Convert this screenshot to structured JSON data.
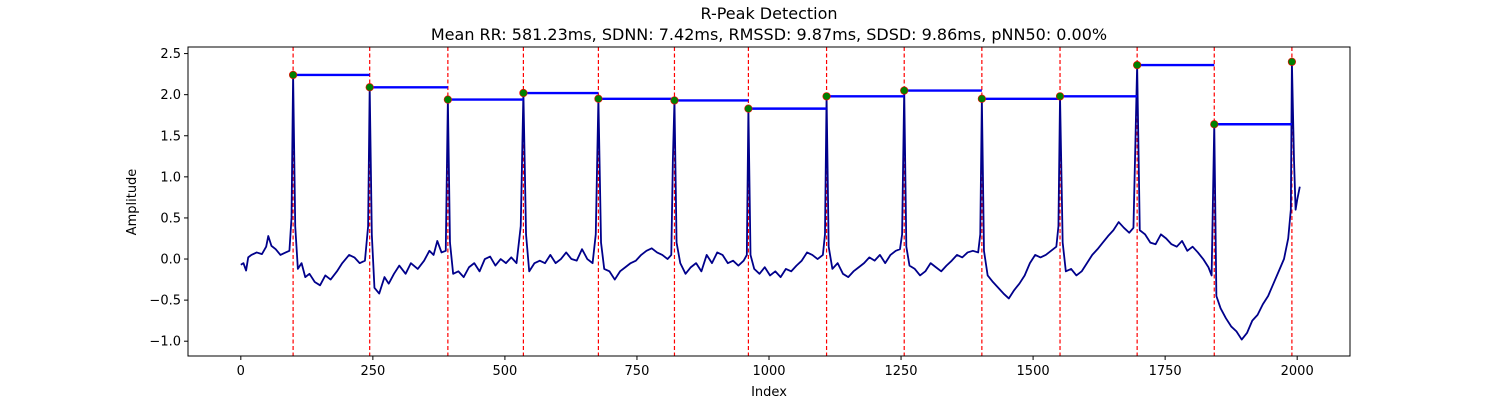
{
  "chart_data": {
    "type": "line",
    "title": "R-Peak Detection",
    "subtitle": "Mean RR: 581.23ms, SDNN: 7.42ms, RMSSD: 9.87ms, SDSD: 9.86ms, pNN50: 0.00%",
    "xlabel": "Index",
    "ylabel": "Amplitude",
    "xlim": [
      -100,
      2100
    ],
    "ylim": [
      -1.18,
      2.58
    ],
    "x_ticks": [
      0,
      250,
      500,
      750,
      1000,
      1250,
      1500,
      1750,
      2000
    ],
    "y_ticks": [
      -1.0,
      -0.5,
      0.0,
      0.5,
      1.0,
      1.5,
      2.0,
      2.5
    ],
    "grid": false,
    "colors": {
      "signal": "#00008b",
      "peak_lines": "#ff0000",
      "peak_markers": "#008000",
      "rr_segments": "#0000ff"
    },
    "signal": {
      "points": [
        [
          0,
          -0.07
        ],
        [
          5,
          -0.05
        ],
        [
          10,
          -0.14
        ],
        [
          14,
          0.02
        ],
        [
          20,
          0.05
        ],
        [
          30,
          0.08
        ],
        [
          40,
          0.06
        ],
        [
          48,
          0.15
        ],
        [
          52,
          0.28
        ],
        [
          58,
          0.16
        ],
        [
          66,
          0.12
        ],
        [
          75,
          0.05
        ],
        [
          85,
          0.08
        ],
        [
          92,
          0.1
        ],
        [
          96,
          0.5
        ],
        [
          99,
          2.24
        ],
        [
          103,
          0.4
        ],
        [
          108,
          -0.12
        ],
        [
          115,
          -0.05
        ],
        [
          122,
          -0.22
        ],
        [
          130,
          -0.18
        ],
        [
          140,
          -0.28
        ],
        [
          150,
          -0.32
        ],
        [
          160,
          -0.2
        ],
        [
          170,
          -0.25
        ],
        [
          182,
          -0.15
        ],
        [
          192,
          -0.05
        ],
        [
          205,
          0.05
        ],
        [
          215,
          0.02
        ],
        [
          225,
          -0.05
        ],
        [
          235,
          -0.02
        ],
        [
          241,
          0.4
        ],
        [
          244,
          2.09
        ],
        [
          248,
          0.3
        ],
        [
          253,
          -0.35
        ],
        [
          262,
          -0.42
        ],
        [
          272,
          -0.22
        ],
        [
          280,
          -0.3
        ],
        [
          290,
          -0.18
        ],
        [
          300,
          -0.08
        ],
        [
          312,
          -0.18
        ],
        [
          322,
          -0.05
        ],
        [
          335,
          -0.12
        ],
        [
          347,
          -0.02
        ],
        [
          357,
          0.1
        ],
        [
          365,
          0.05
        ],
        [
          372,
          0.22
        ],
        [
          380,
          0.08
        ],
        [
          388,
          0.1
        ],
        [
          392,
          1.94
        ],
        [
          396,
          0.2
        ],
        [
          402,
          -0.18
        ],
        [
          412,
          -0.15
        ],
        [
          422,
          -0.22
        ],
        [
          432,
          -0.1
        ],
        [
          442,
          -0.05
        ],
        [
          452,
          -0.15
        ],
        [
          462,
          0.0
        ],
        [
          472,
          0.03
        ],
        [
          482,
          -0.08
        ],
        [
          492,
          0.0
        ],
        [
          502,
          -0.05
        ],
        [
          512,
          0.02
        ],
        [
          522,
          -0.05
        ],
        [
          530,
          0.4
        ],
        [
          535,
          2.02
        ],
        [
          540,
          0.3
        ],
        [
          546,
          -0.15
        ],
        [
          556,
          -0.05
        ],
        [
          566,
          -0.02
        ],
        [
          576,
          -0.05
        ],
        [
          586,
          0.05
        ],
        [
          596,
          -0.05
        ],
        [
          606,
          0.0
        ],
        [
          616,
          0.08
        ],
        [
          626,
          0.0
        ],
        [
          636,
          -0.02
        ],
        [
          646,
          0.12
        ],
        [
          656,
          0.0
        ],
        [
          666,
          -0.05
        ],
        [
          672,
          0.3
        ],
        [
          677,
          1.95
        ],
        [
          682,
          0.2
        ],
        [
          688,
          -0.12
        ],
        [
          698,
          -0.15
        ],
        [
          708,
          -0.25
        ],
        [
          718,
          -0.15
        ],
        [
          728,
          -0.1
        ],
        [
          738,
          -0.05
        ],
        [
          748,
          -0.02
        ],
        [
          758,
          0.05
        ],
        [
          768,
          0.1
        ],
        [
          778,
          0.13
        ],
        [
          788,
          0.08
        ],
        [
          798,
          0.05
        ],
        [
          808,
          0.0
        ],
        [
          815,
          0.05
        ],
        [
          818,
          1.2
        ],
        [
          821,
          1.93
        ],
        [
          825,
          0.2
        ],
        [
          832,
          -0.05
        ],
        [
          842,
          -0.18
        ],
        [
          852,
          -0.1
        ],
        [
          862,
          -0.05
        ],
        [
          872,
          -0.15
        ],
        [
          882,
          0.05
        ],
        [
          892,
          -0.05
        ],
        [
          902,
          0.08
        ],
        [
          912,
          0.05
        ],
        [
          922,
          -0.05
        ],
        [
          932,
          -0.02
        ],
        [
          942,
          -0.08
        ],
        [
          952,
          -0.02
        ],
        [
          958,
          0.05
        ],
        [
          961,
          1.83
        ],
        [
          965,
          0.05
        ],
        [
          972,
          -0.12
        ],
        [
          982,
          -0.18
        ],
        [
          992,
          -0.1
        ],
        [
          1002,
          -0.2
        ],
        [
          1012,
          -0.15
        ],
        [
          1022,
          -0.22
        ],
        [
          1032,
          -0.12
        ],
        [
          1042,
          -0.15
        ],
        [
          1052,
          -0.08
        ],
        [
          1062,
          -0.02
        ],
        [
          1072,
          0.08
        ],
        [
          1082,
          0.05
        ],
        [
          1092,
          0.0
        ],
        [
          1102,
          0.05
        ],
        [
          1106,
          0.3
        ],
        [
          1109,
          1.98
        ],
        [
          1113,
          0.15
        ],
        [
          1120,
          -0.12
        ],
        [
          1130,
          -0.05
        ],
        [
          1140,
          -0.18
        ],
        [
          1150,
          -0.22
        ],
        [
          1160,
          -0.15
        ],
        [
          1170,
          -0.1
        ],
        [
          1180,
          -0.05
        ],
        [
          1190,
          0.02
        ],
        [
          1200,
          -0.02
        ],
        [
          1210,
          0.05
        ],
        [
          1220,
          -0.05
        ],
        [
          1230,
          0.05
        ],
        [
          1240,
          0.1
        ],
        [
          1248,
          0.12
        ],
        [
          1252,
          0.3
        ],
        [
          1256,
          2.05
        ],
        [
          1260,
          0.15
        ],
        [
          1266,
          -0.08
        ],
        [
          1276,
          -0.12
        ],
        [
          1286,
          -0.2
        ],
        [
          1296,
          -0.15
        ],
        [
          1306,
          -0.05
        ],
        [
          1316,
          -0.1
        ],
        [
          1326,
          -0.15
        ],
        [
          1336,
          -0.08
        ],
        [
          1346,
          -0.02
        ],
        [
          1356,
          0.05
        ],
        [
          1366,
          0.02
        ],
        [
          1376,
          0.08
        ],
        [
          1386,
          0.1
        ],
        [
          1396,
          0.08
        ],
        [
          1400,
          0.3
        ],
        [
          1403,
          1.95
        ],
        [
          1407,
          0.1
        ],
        [
          1414,
          -0.2
        ],
        [
          1424,
          -0.28
        ],
        [
          1434,
          -0.35
        ],
        [
          1444,
          -0.42
        ],
        [
          1454,
          -0.48
        ],
        [
          1464,
          -0.38
        ],
        [
          1474,
          -0.3
        ],
        [
          1484,
          -0.2
        ],
        [
          1494,
          -0.05
        ],
        [
          1504,
          0.05
        ],
        [
          1514,
          0.02
        ],
        [
          1524,
          0.05
        ],
        [
          1534,
          0.1
        ],
        [
          1544,
          0.15
        ],
        [
          1548,
          0.4
        ],
        [
          1551,
          1.98
        ],
        [
          1556,
          0.2
        ],
        [
          1562,
          -0.15
        ],
        [
          1572,
          -0.12
        ],
        [
          1582,
          -0.2
        ],
        [
          1592,
          -0.15
        ],
        [
          1602,
          -0.05
        ],
        [
          1612,
          0.05
        ],
        [
          1622,
          0.12
        ],
        [
          1632,
          0.2
        ],
        [
          1642,
          0.28
        ],
        [
          1652,
          0.35
        ],
        [
          1662,
          0.45
        ],
        [
          1672,
          0.38
        ],
        [
          1682,
          0.32
        ],
        [
          1690,
          0.38
        ],
        [
          1694,
          1.5
        ],
        [
          1697,
          2.36
        ],
        [
          1702,
          0.35
        ],
        [
          1712,
          0.3
        ],
        [
          1722,
          0.2
        ],
        [
          1732,
          0.18
        ],
        [
          1742,
          0.3
        ],
        [
          1752,
          0.25
        ],
        [
          1762,
          0.18
        ],
        [
          1772,
          0.15
        ],
        [
          1782,
          0.22
        ],
        [
          1792,
          0.1
        ],
        [
          1802,
          0.15
        ],
        [
          1812,
          0.08
        ],
        [
          1822,
          0.0
        ],
        [
          1832,
          -0.1
        ],
        [
          1838,
          -0.2
        ],
        [
          1843,
          1.64
        ],
        [
          1847,
          -0.45
        ],
        [
          1855,
          -0.6
        ],
        [
          1865,
          -0.72
        ],
        [
          1875,
          -0.82
        ],
        [
          1885,
          -0.88
        ],
        [
          1895,
          -0.98
        ],
        [
          1905,
          -0.9
        ],
        [
          1915,
          -0.75
        ],
        [
          1925,
          -0.68
        ],
        [
          1935,
          -0.55
        ],
        [
          1945,
          -0.45
        ],
        [
          1955,
          -0.3
        ],
        [
          1965,
          -0.15
        ],
        [
          1975,
          0.0
        ],
        [
          1983,
          0.25
        ],
        [
          1988,
          0.6
        ],
        [
          1990,
          2.4
        ],
        [
          1994,
          1.2
        ],
        [
          1997,
          0.6
        ],
        [
          2000,
          0.72
        ],
        [
          2005,
          0.88
        ]
      ]
    },
    "r_peaks": [
      {
        "index": 99,
        "amplitude": 2.24
      },
      {
        "index": 244,
        "amplitude": 2.09
      },
      {
        "index": 392,
        "amplitude": 1.94
      },
      {
        "index": 535,
        "amplitude": 2.02
      },
      {
        "index": 677,
        "amplitude": 1.95
      },
      {
        "index": 821,
        "amplitude": 1.93
      },
      {
        "index": 961,
        "amplitude": 1.83
      },
      {
        "index": 1109,
        "amplitude": 1.98
      },
      {
        "index": 1256,
        "amplitude": 2.05
      },
      {
        "index": 1403,
        "amplitude": 1.95
      },
      {
        "index": 1551,
        "amplitude": 1.98
      },
      {
        "index": 1697,
        "amplitude": 2.36
      },
      {
        "index": 1843,
        "amplitude": 1.64
      },
      {
        "index": 1990,
        "amplitude": 2.4
      }
    ]
  }
}
